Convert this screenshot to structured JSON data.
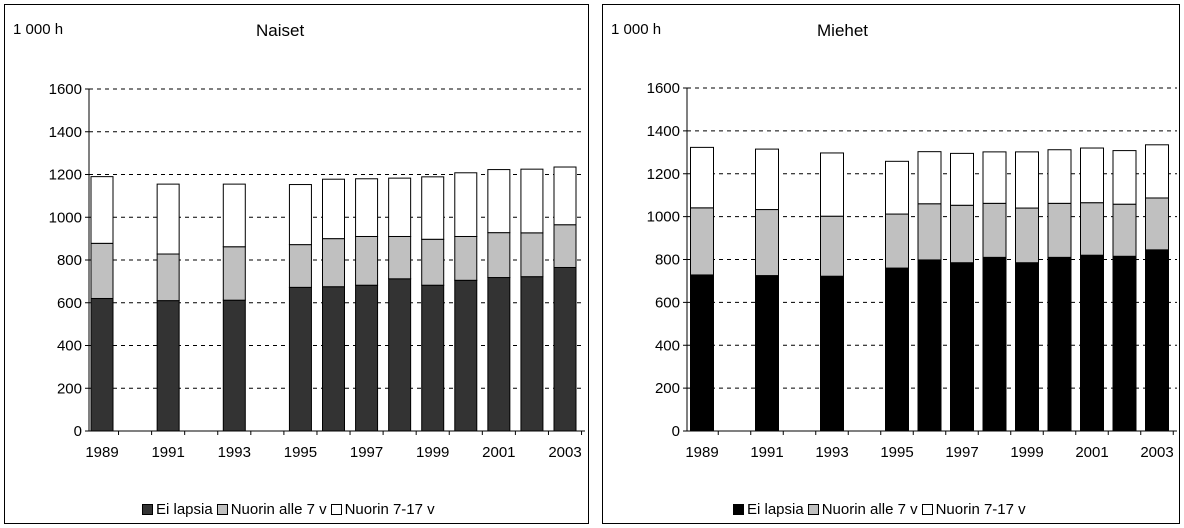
{
  "chart_data": [
    {
      "type": "bar",
      "stacked": true,
      "title": "Naiset",
      "ylabel": "1 000 h",
      "ylim": [
        0,
        1600
      ],
      "yticks": [
        0,
        200,
        400,
        600,
        800,
        1000,
        1200,
        1400,
        1600
      ],
      "grid": true,
      "legend_position": "bottom",
      "x": [
        1989,
        1991,
        1993,
        1995,
        1996,
        1997,
        1998,
        1999,
        2000,
        2001,
        2002,
        2003
      ],
      "x_tick_labels": [
        "1989",
        "1991",
        "1993",
        "1995",
        "1997",
        "1999",
        "2001",
        "2003"
      ],
      "series": [
        {
          "name": "Ei lapsia",
          "color": "#333333",
          "values": [
            620,
            610,
            612,
            672,
            675,
            682,
            712,
            682,
            705,
            718,
            722,
            765
          ]
        },
        {
          "name": "Nuorin alle 7 v",
          "color": "#c0c0c0",
          "values": [
            258,
            218,
            250,
            200,
            225,
            228,
            198,
            215,
            205,
            210,
            205,
            200
          ]
        },
        {
          "name": "Nuorin 7-17 v",
          "color": "#ffffff",
          "values": [
            312,
            327,
            293,
            281,
            278,
            270,
            273,
            292,
            298,
            295,
            298,
            270
          ]
        }
      ]
    },
    {
      "type": "bar",
      "stacked": true,
      "title": "Miehet",
      "ylabel": "1 000 h",
      "ylim": [
        0,
        1600
      ],
      "yticks": [
        0,
        200,
        400,
        600,
        800,
        1000,
        1200,
        1400,
        1600
      ],
      "grid": true,
      "legend_position": "bottom",
      "x": [
        1989,
        1991,
        1993,
        1995,
        1996,
        1997,
        1998,
        1999,
        2000,
        2001,
        2002,
        2003
      ],
      "x_tick_labels": [
        "1989",
        "1991",
        "1993",
        "1995",
        "1997",
        "1999",
        "2001",
        "2003"
      ],
      "series": [
        {
          "name": "Ei lapsia",
          "color": "#000000",
          "values": [
            728,
            725,
            722,
            760,
            798,
            785,
            810,
            785,
            810,
            820,
            815,
            845
          ]
        },
        {
          "name": "Nuorin alle 7 v",
          "color": "#c0c0c0",
          "values": [
            313,
            308,
            280,
            252,
            262,
            268,
            252,
            255,
            252,
            245,
            243,
            242
          ]
        },
        {
          "name": "Nuorin 7-17 v",
          "color": "#ffffff",
          "values": [
            282,
            282,
            295,
            246,
            243,
            242,
            240,
            262,
            250,
            255,
            250,
            248
          ]
        }
      ]
    }
  ]
}
